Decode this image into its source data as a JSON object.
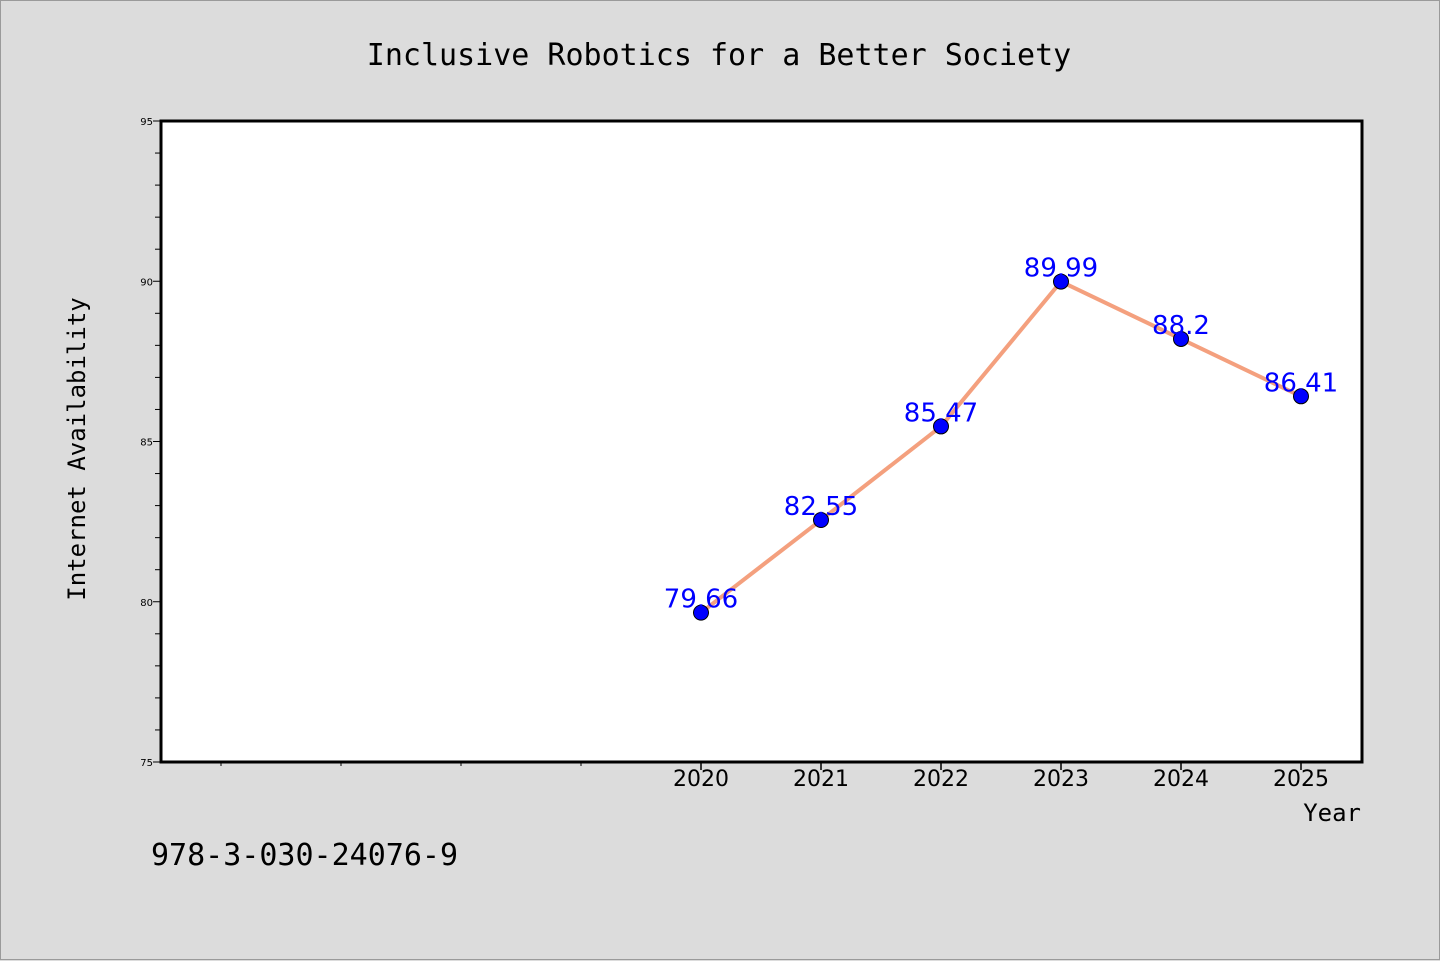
{
  "chart_data": {
    "type": "line",
    "title": "Inclusive Robotics for a Better Society",
    "xlabel": "Year",
    "ylabel": "Internet Availability",
    "categories": [
      "2020",
      "2021",
      "2022",
      "2023",
      "2024",
      "2025"
    ],
    "series": [
      {
        "values": [
          79.66,
          82.55,
          85.47,
          89.99,
          88.2,
          86.41
        ],
        "labels": [
          "79.66",
          "82.55",
          "85.47",
          "89.99",
          "88.2",
          "86.41"
        ],
        "line_color": "#f4a07e",
        "marker_color": "#0000ff"
      }
    ],
    "ylim": [
      75,
      95
    ],
    "yticks": [
      "75",
      "80",
      "85",
      "90",
      "95"
    ],
    "grid": false,
    "legend": "none",
    "annotation": "978-3-030-24076-9"
  }
}
